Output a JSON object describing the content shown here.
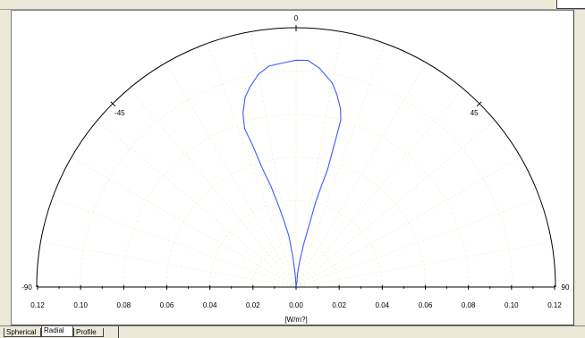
{
  "chart_data": {
    "type": "polar",
    "angular_ticks": [
      {
        "angle": -90,
        "label": "-90"
      },
      {
        "angle": -45,
        "label": "-45"
      },
      {
        "angle": 0,
        "label": "0"
      },
      {
        "angle": 45,
        "label": "45"
      },
      {
        "angle": 90,
        "label": "90"
      }
    ],
    "radial_range": [
      0,
      0.12
    ],
    "radial_tick_labels": [
      "0.12",
      "0.10",
      "0.08",
      "0.06",
      "0.04",
      "0.02",
      "0.00",
      "0.02",
      "0.04",
      "0.06",
      "0.08",
      "0.10",
      "0.12"
    ],
    "radial_axis_label": "[W/m?]",
    "series": [
      {
        "color": "#3b5bff",
        "points": [
          {
            "angle": -90,
            "r": 0.0
          },
          {
            "angle": -4,
            "r": 0.0055
          },
          {
            "angle": -6,
            "r": 0.014
          },
          {
            "angle": -8,
            "r": 0.024
          },
          {
            "angle": -10,
            "r": 0.03
          },
          {
            "angle": -12,
            "r": 0.038
          },
          {
            "angle": -14,
            "r": 0.048
          },
          {
            "angle": -16,
            "r": 0.058
          },
          {
            "angle": -17,
            "r": 0.068
          },
          {
            "angle": -18,
            "r": 0.077
          },
          {
            "angle": -17,
            "r": 0.084
          },
          {
            "angle": -15,
            "r": 0.091
          },
          {
            "angle": -13,
            "r": 0.095
          },
          {
            "angle": -10,
            "r": 0.1
          },
          {
            "angle": -7,
            "r": 0.103
          },
          {
            "angle": -3,
            "r": 0.104
          },
          {
            "angle": 0,
            "r": 0.105
          },
          {
            "angle": 3,
            "r": 0.105
          },
          {
            "angle": 6,
            "r": 0.102
          },
          {
            "angle": 10,
            "r": 0.096
          },
          {
            "angle": 12,
            "r": 0.091
          },
          {
            "angle": 14,
            "r": 0.085
          },
          {
            "angle": 15,
            "r": 0.08
          },
          {
            "angle": 15,
            "r": 0.073
          },
          {
            "angle": 15,
            "r": 0.062
          },
          {
            "angle": 15,
            "r": 0.056
          },
          {
            "angle": 14,
            "r": 0.048
          },
          {
            "angle": 13,
            "r": 0.04
          },
          {
            "angle": 12,
            "r": 0.03
          },
          {
            "angle": 10,
            "r": 0.02
          },
          {
            "angle": 8,
            "r": 0.012
          },
          {
            "angle": 6,
            "r": 0.006
          },
          {
            "angle": 10,
            "r": 0.0025
          },
          {
            "angle": 90,
            "r": 0.0
          }
        ]
      }
    ]
  },
  "tabs": [
    {
      "label": "Spherical",
      "active": false
    },
    {
      "label": "Radial",
      "active": true
    },
    {
      "label": "Profile",
      "active": false
    }
  ]
}
